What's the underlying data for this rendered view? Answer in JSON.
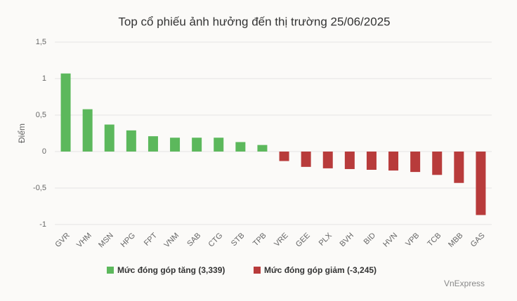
{
  "chart_data": {
    "type": "bar",
    "title": "Top cổ phiếu ảnh hưởng đến thị trường 25/06/2025",
    "y_label": "Điểm",
    "source": "VnExpress",
    "categories": [
      "GVR",
      "VHM",
      "MSN",
      "HPG",
      "FPT",
      "VNM",
      "SAB",
      "CTG",
      "STB",
      "TPB",
      "VRE",
      "GEE",
      "PLX",
      "BVH",
      "BID",
      "HVN",
      "VPB",
      "TCB",
      "MBB",
      "GAS"
    ],
    "series": [
      {
        "name": "Mức đóng góp tăng (3,339)",
        "color": "#5cb85c",
        "values": [
          1.07,
          0.58,
          0.37,
          0.29,
          0.21,
          0.19,
          0.19,
          0.19,
          0.13,
          0.09,
          null,
          null,
          null,
          null,
          null,
          null,
          null,
          null,
          null,
          null
        ]
      },
      {
        "name": "Mức đóng góp giảm (-3,245)",
        "color": "#b83b3b",
        "values": [
          null,
          null,
          null,
          null,
          null,
          null,
          null,
          null,
          null,
          null,
          -0.13,
          -0.21,
          -0.23,
          -0.24,
          -0.25,
          -0.26,
          -0.28,
          -0.32,
          -0.43,
          -0.87
        ]
      }
    ],
    "ylim": [
      -1,
      1.5
    ],
    "yticks": [
      -1,
      {
        "value": -0.5,
        "label": "-0,5"
      },
      0,
      {
        "value": 0.5,
        "label": "0,5"
      },
      1,
      {
        "value": 1.5,
        "label": "1,5"
      }
    ],
    "grid": true
  }
}
